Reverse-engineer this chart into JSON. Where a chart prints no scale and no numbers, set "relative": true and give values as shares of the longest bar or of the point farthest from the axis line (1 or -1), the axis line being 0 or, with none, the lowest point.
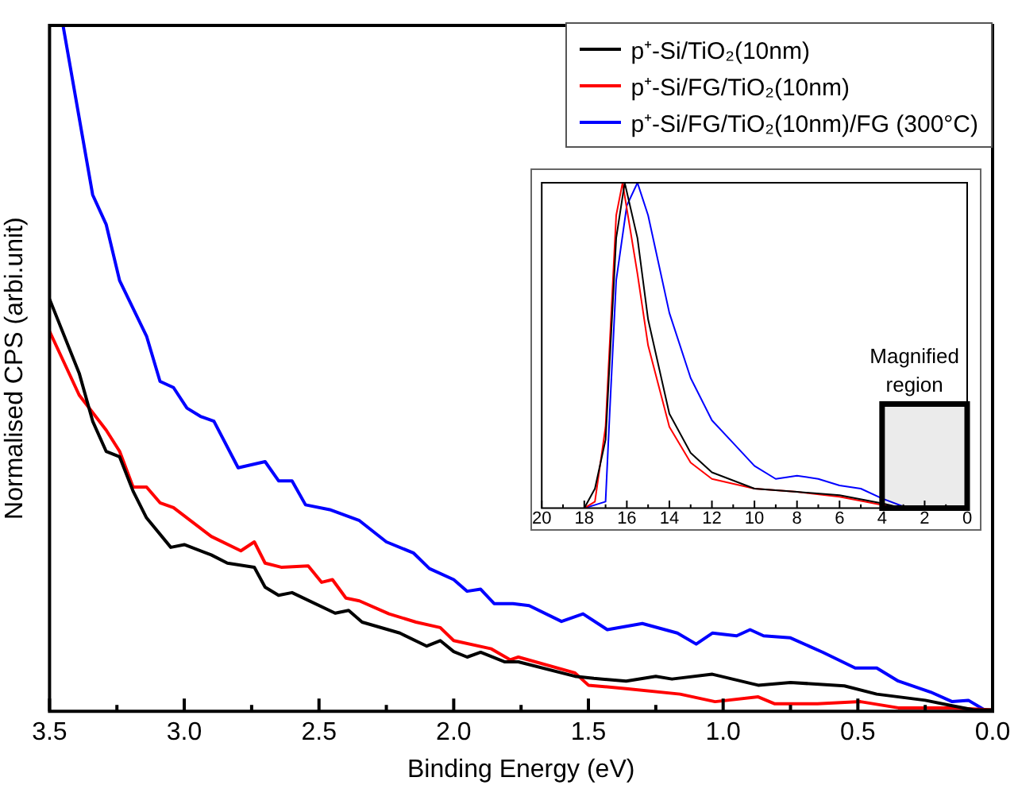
{
  "chart_data": [
    {
      "type": "line",
      "xlabel": "Binding Energy (eV)",
      "ylabel": "Normalised CPS (arbi.unit)",
      "relative": true,
      "legend": "top right",
      "marker": "none",
      "line_style": "solid",
      "xlim": [
        3.5,
        0
      ],
      "xticks": [
        3.5,
        {
          "value": 3.25,
          "label": null
        },
        {
          "value": 3,
          "label": "3.0"
        },
        {
          "value": 2.75,
          "label": null
        },
        2.5,
        {
          "value": 2.25,
          "label": null
        },
        {
          "value": 2,
          "label": "2.0"
        },
        {
          "value": 1.75,
          "label": null
        },
        1.5,
        {
          "value": 1.25,
          "label": null
        },
        {
          "value": 1,
          "label": "1.0"
        },
        {
          "value": 0.75,
          "label": null
        },
        0.5,
        {
          "value": 0.25,
          "label": null
        },
        {
          "value": 0,
          "label": "0.0"
        }
      ],
      "series": [
        {
          "name": "p⁺-Si/TiO₂(10nm)",
          "color": "#000000",
          "x": [
            3.5,
            3.39,
            3.34,
            3.29,
            3.24,
            3.19,
            3.14,
            3.05,
            3.0,
            2.9,
            2.84,
            2.74,
            2.7,
            2.65,
            2.6,
            2.44,
            2.39,
            2.34,
            2.2,
            2.1,
            2.05,
            2.0,
            1.95,
            1.9,
            1.81,
            1.76,
            1.55,
            1.48,
            1.36,
            1.25,
            1.19,
            1.04,
            0.87,
            0.75,
            0.55,
            0.43,
            0.25,
            0.15,
            0.07,
            0.0
          ],
          "values": [
            0.601,
            0.493,
            0.423,
            0.379,
            0.371,
            0.321,
            0.282,
            0.239,
            0.243,
            0.228,
            0.216,
            0.21,
            0.181,
            0.169,
            0.173,
            0.143,
            0.147,
            0.13,
            0.114,
            0.095,
            0.103,
            0.087,
            0.079,
            0.086,
            0.072,
            0.072,
            0.051,
            0.048,
            0.044,
            0.051,
            0.047,
            0.054,
            0.038,
            0.042,
            0.037,
            0.025,
            0.016,
            0.008,
            0.002,
            0.002
          ]
        },
        {
          "name": "p⁺-Si/FG/TiO₂(10nm)",
          "color": "#ff0000",
          "x": [
            3.5,
            3.39,
            3.29,
            3.24,
            3.19,
            3.14,
            3.09,
            3.04,
            2.9,
            2.79,
            2.74,
            2.7,
            2.64,
            2.54,
            2.49,
            2.45,
            2.4,
            2.35,
            2.24,
            2.14,
            2.05,
            2.0,
            1.86,
            1.79,
            1.76,
            1.55,
            1.5,
            1.36,
            1.16,
            1.03,
            0.87,
            0.81,
            0.65,
            0.49,
            0.35,
            0.15,
            0.0
          ],
          "values": [
            0.554,
            0.461,
            0.41,
            0.379,
            0.327,
            0.327,
            0.304,
            0.297,
            0.255,
            0.234,
            0.247,
            0.216,
            0.21,
            0.212,
            0.188,
            0.192,
            0.165,
            0.161,
            0.142,
            0.13,
            0.122,
            0.103,
            0.091,
            0.075,
            0.079,
            0.056,
            0.038,
            0.033,
            0.025,
            0.014,
            0.021,
            0.011,
            0.011,
            0.014,
            0.005,
            0.005,
            0.002
          ]
        },
        {
          "name": "p⁺-Si/FG/TiO₂(10nm)/FG (300°C)",
          "color": "#0000ff",
          "x": [
            3.45,
            3.34,
            3.29,
            3.24,
            3.14,
            3.09,
            3.04,
            2.99,
            2.94,
            2.89,
            2.8,
            2.7,
            2.65,
            2.6,
            2.55,
            2.46,
            2.35,
            2.25,
            2.15,
            2.09,
            2.0,
            1.95,
            1.9,
            1.85,
            1.78,
            1.72,
            1.6,
            1.52,
            1.43,
            1.3,
            1.17,
            1.1,
            1.04,
            0.95,
            0.9,
            0.85,
            0.75,
            0.63,
            0.51,
            0.43,
            0.35,
            0.23,
            0.15,
            0.09,
            0.03
          ],
          "values": [
            1,
            0.753,
            0.71,
            0.628,
            0.547,
            0.481,
            0.472,
            0.442,
            0.43,
            0.423,
            0.355,
            0.364,
            0.336,
            0.336,
            0.301,
            0.294,
            0.278,
            0.247,
            0.231,
            0.208,
            0.192,
            0.175,
            0.178,
            0.157,
            0.157,
            0.154,
            0.131,
            0.142,
            0.119,
            0.128,
            0.114,
            0.098,
            0.114,
            0.11,
            0.119,
            0.11,
            0.107,
            0.086,
            0.063,
            0.063,
            0.044,
            0.028,
            0.014,
            0.016,
            0.002
          ]
        }
      ]
    },
    {
      "type": "line",
      "relative": true,
      "marker": "none",
      "line_style": "solid",
      "tick_labels": "x",
      "xlim": [
        20,
        0
      ],
      "xticks": [
        20,
        {
          "value": 19,
          "label": null
        },
        18,
        {
          "value": 17,
          "label": null
        },
        16,
        {
          "value": 15,
          "label": null
        },
        14,
        {
          "value": 13,
          "label": null
        },
        12,
        {
          "value": 11,
          "label": null
        },
        10,
        {
          "value": 9,
          "label": null
        },
        8,
        {
          "value": 7,
          "label": null
        },
        6,
        {
          "value": 5,
          "label": null
        },
        4,
        {
          "value": 3,
          "label": null
        },
        2,
        {
          "value": 1,
          "label": null
        },
        0
      ],
      "bands": [
        {
          "axis": "x",
          "from": 4,
          "to": 0,
          "label": "Magnified region",
          "color": "#000000"
        }
      ],
      "series": [
        {
          "color": "#000000",
          "x": [
            18,
            17.5,
            17,
            16.5,
            16.1,
            15.5,
            15,
            14,
            13,
            12,
            10,
            8,
            6,
            4,
            3,
            0
          ],
          "values": [
            0,
            0.06,
            0.21,
            0.83,
            1,
            0.83,
            0.58,
            0.29,
            0.17,
            0.11,
            0.06,
            0.05,
            0.04,
            0.015,
            0,
            0
          ]
        },
        {
          "color": "#ff0000",
          "x": [
            18,
            17.5,
            17,
            16.5,
            16.2,
            15.5,
            15,
            14,
            13,
            12,
            10,
            8,
            6,
            4,
            3,
            0
          ],
          "values": [
            0,
            0.02,
            0.25,
            0.9,
            1,
            0.72,
            0.5,
            0.25,
            0.14,
            0.09,
            0.06,
            0.05,
            0.035,
            0.01,
            0,
            0
          ]
        },
        {
          "color": "#0000ff",
          "x": [
            18,
            17,
            16.8,
            16.5,
            16,
            15.5,
            15,
            14,
            13,
            12,
            11,
            10,
            9,
            8,
            7,
            6,
            5,
            4,
            3,
            0
          ],
          "values": [
            0,
            0.02,
            0.3,
            0.7,
            0.93,
            1,
            0.9,
            0.6,
            0.4,
            0.27,
            0.2,
            0.13,
            0.09,
            0.1,
            0.09,
            0.07,
            0.06,
            0.03,
            0.005,
            0
          ]
        }
      ]
    }
  ]
}
